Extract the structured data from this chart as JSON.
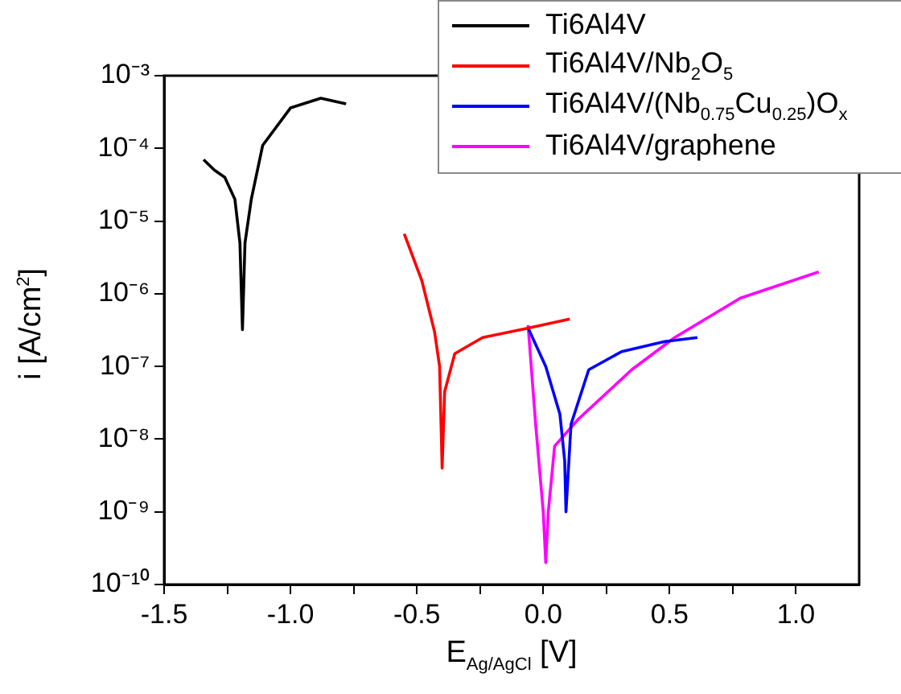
{
  "chart_data": {
    "type": "line",
    "xlabel": "E$_{Ag/AgCl}$ [V]",
    "ylabel": "i [A/cm$^{2}$]",
    "log": "y",
    "grid": false,
    "legend": "top right",
    "marker": "none",
    "line_style": "solid",
    "xlim": [
      -1.5,
      1.25
    ],
    "xticks": [
      -1.5,
      {
        "value": -1.25,
        "label": null
      },
      {
        "value": -1.0,
        "label": "-1.0"
      },
      {
        "value": -0.75,
        "label": null
      },
      -0.5,
      {
        "value": -0.25,
        "label": null
      },
      {
        "value": 0,
        "label": "0.0"
      },
      {
        "value": 0.25,
        "label": null
      },
      0.5,
      {
        "value": 0.75,
        "label": null
      },
      {
        "value": 1.0,
        "label": "1.0"
      }
    ],
    "ylim": [
      1e-10,
      0.001
    ],
    "yticks": [
      {
        "value": 1e-10,
        "label": "10⁻¹⁰"
      },
      {
        "value": 1e-09,
        "label": "10⁻⁹"
      },
      {
        "value": 1e-08,
        "label": "10⁻⁸"
      },
      {
        "value": 1e-07,
        "label": "10⁻⁷"
      },
      {
        "value": 1e-06,
        "label": "10⁻⁶"
      },
      {
        "value": 1e-05,
        "label": "10⁻⁵"
      },
      {
        "value": 0.0001,
        "label": "10⁻⁴"
      },
      {
        "value": 0.001,
        "label": "10⁻³"
      }
    ],
    "series": [
      {
        "name": "Ti6Al4V",
        "color": "#000000",
        "x": [
          -1.344,
          -1.3,
          -1.26,
          -1.22,
          -1.2,
          -1.19,
          -1.18,
          -1.155,
          -1.11,
          -1.0,
          -0.88,
          -0.78
        ],
        "values": [
          7e-05,
          5e-05,
          4e-05,
          2e-05,
          5e-06,
          3.2e-07,
          5e-06,
          2e-05,
          0.00011,
          0.00036,
          0.00049,
          0.00041
        ]
      },
      {
        "name": "Ti6Al4V/Nb$_{2}$O$_{5}$",
        "color": "#ff0000",
        "x": [
          -0.55,
          -0.48,
          -0.43,
          -0.41,
          -0.4,
          -0.39,
          -0.35,
          -0.24,
          -0.07,
          0.105
        ],
        "values": [
          6.7e-06,
          1.5e-06,
          3e-07,
          1e-07,
          4e-09,
          4.5e-08,
          1.5e-07,
          2.5e-07,
          3.3e-07,
          4.5e-07
        ]
      },
      {
        "name": "Ti6Al4V/(Nb$_{0.75}$Cu$_{0.25}$)O$_{x}$",
        "color": "#0000ff",
        "x": [
          -0.06,
          0.01,
          0.066,
          0.085,
          0.09,
          0.11,
          0.18,
          0.31,
          0.48,
          0.61
        ],
        "values": [
          3.4e-07,
          1e-07,
          2.2e-08,
          5e-09,
          1e-09,
          1.6e-08,
          9e-08,
          1.6e-07,
          2.2e-07,
          2.5e-07
        ]
      },
      {
        "name": "Ti6Al4V/graphene",
        "color": "#ff00ff",
        "x": [
          -0.06,
          -0.03,
          0.0,
          0.01,
          0.02,
          0.045,
          0.14,
          0.35,
          0.52,
          0.78,
          1.09
        ],
        "values": [
          3.7e-07,
          1.6e-08,
          1e-09,
          2e-10,
          1e-09,
          8e-09,
          1.9e-08,
          9e-08,
          2.5e-07,
          8.7e-07,
          2e-06
        ]
      }
    ]
  }
}
